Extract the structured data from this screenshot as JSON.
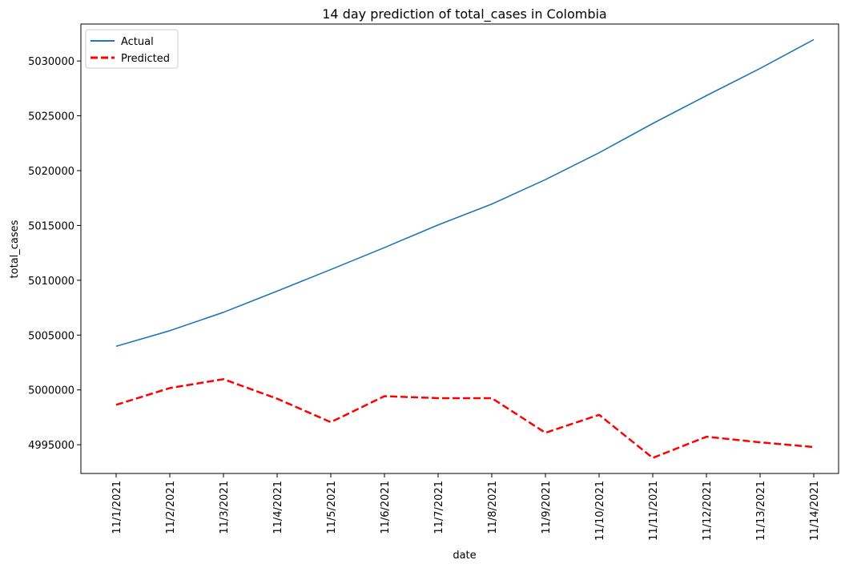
{
  "chart_data": {
    "type": "line",
    "title": "14 day prediction of total_cases in Colombia",
    "xlabel": "date",
    "ylabel": "total_cases",
    "categories": [
      "11/1/2021",
      "11/2/2021",
      "11/3/2021",
      "11/4/2021",
      "11/5/2021",
      "11/6/2021",
      "11/7/2021",
      "11/8/2021",
      "11/9/2021",
      "11/10/2021",
      "11/11/2021",
      "11/12/2021",
      "11/13/2021",
      "11/14/2021"
    ],
    "series": [
      {
        "name": "Actual",
        "color": "#1f77b4",
        "style": "solid",
        "values": [
          5003980,
          5005400,
          5007080,
          5009010,
          5010980,
          5012980,
          5015050,
          5016950,
          5019180,
          5021630,
          5024300,
          5026840,
          5029320,
          5031950
        ]
      },
      {
        "name": "Predicted",
        "color": "#ff0000",
        "style": "dashed",
        "values": [
          4998640,
          5000170,
          5000980,
          4999200,
          4997060,
          4999430,
          4999250,
          4999250,
          4996090,
          4997730,
          4993800,
          4995730,
          4995220,
          4994790
        ]
      }
    ],
    "yticks": [
      4995000,
      5000000,
      5005000,
      5010000,
      5015000,
      5020000,
      5025000,
      5030000
    ],
    "ylim": [
      4992380,
      5033370
    ],
    "legend_position": "upper-left",
    "grid": false
  }
}
